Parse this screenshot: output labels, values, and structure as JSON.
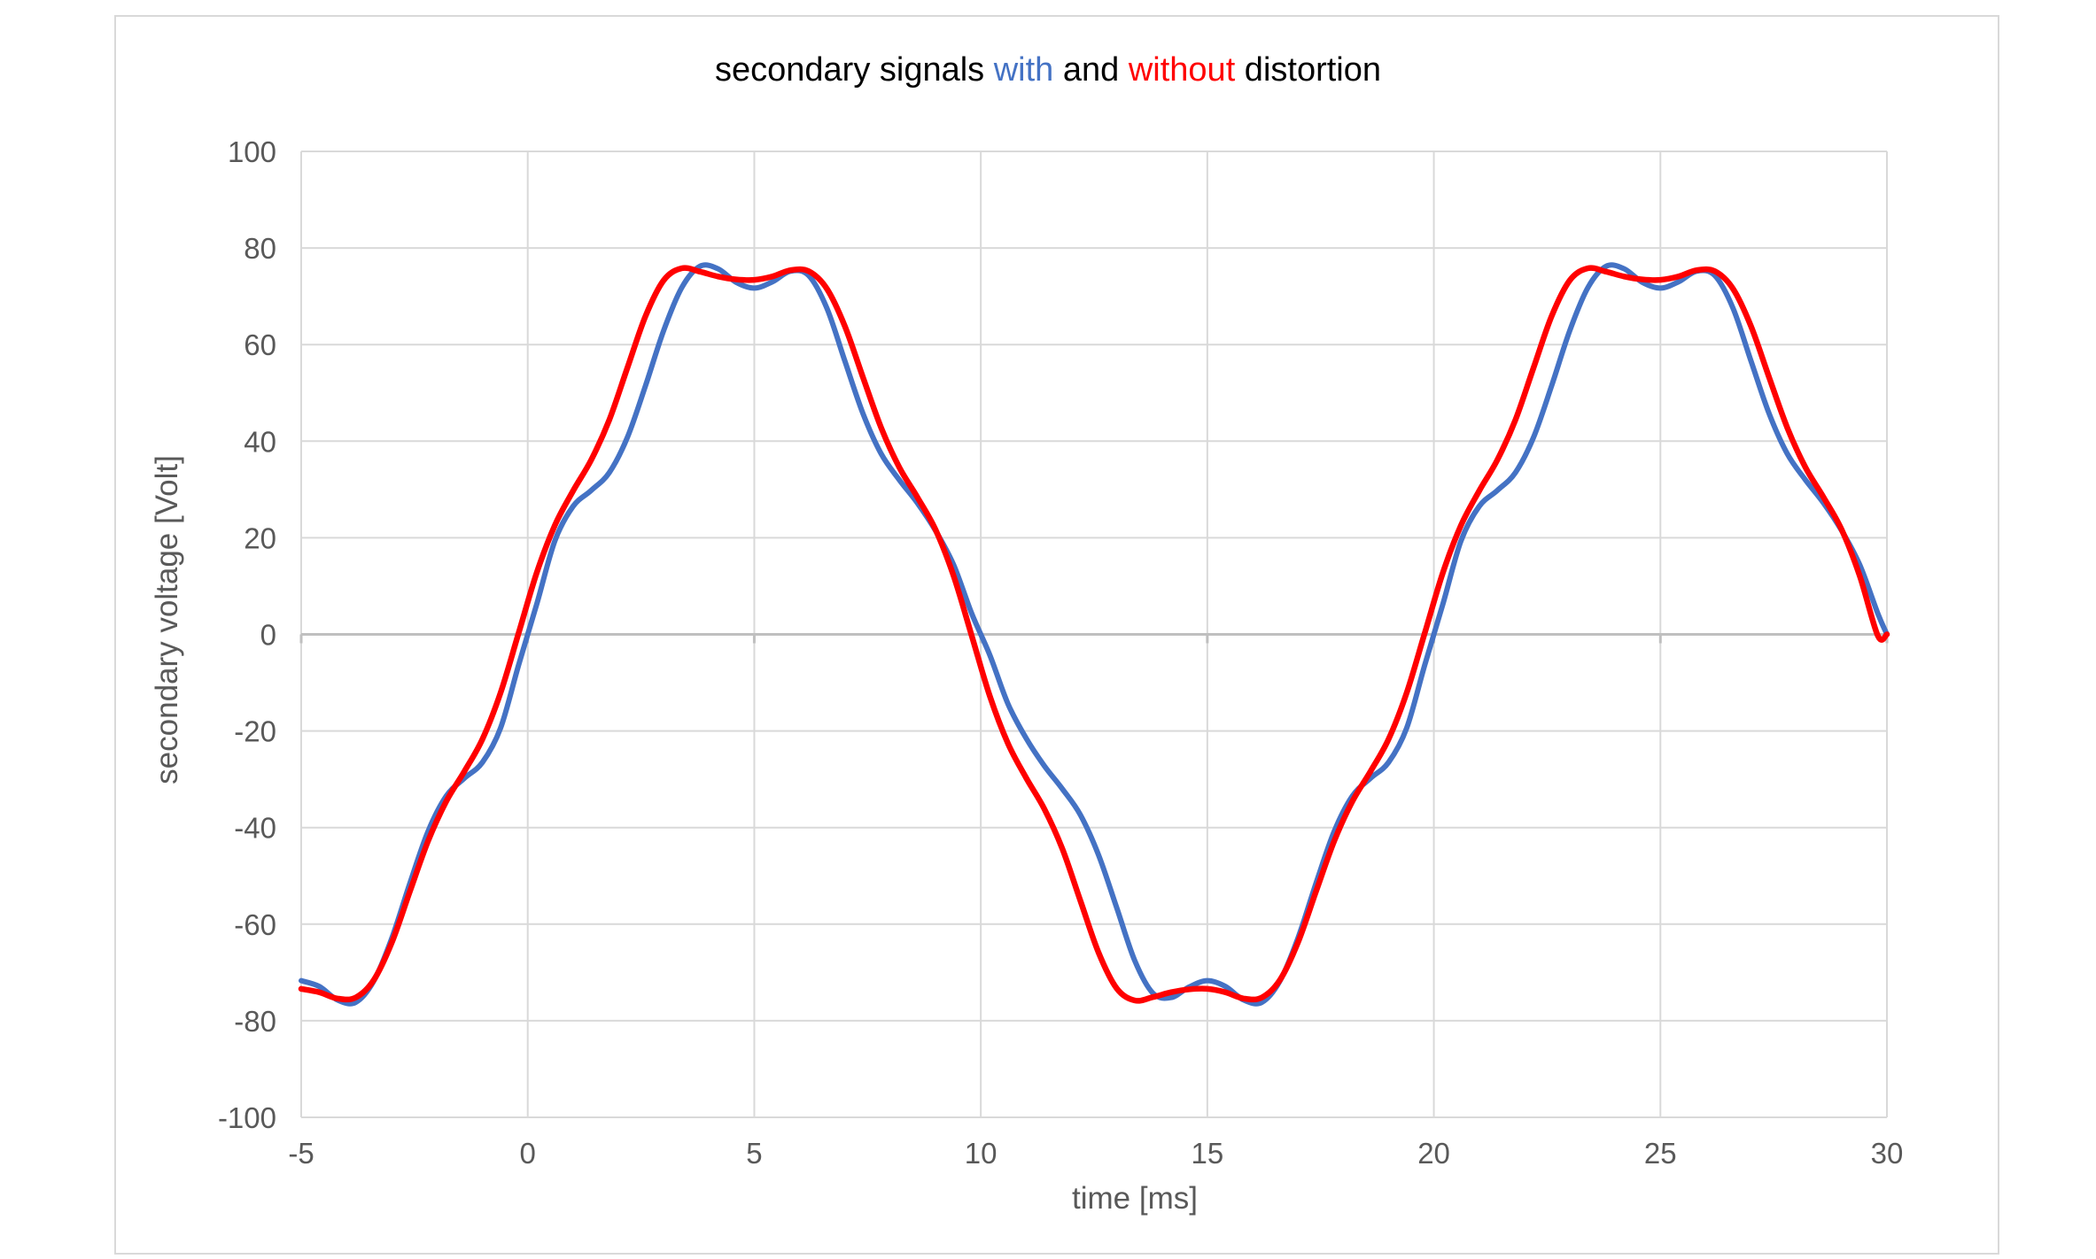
{
  "chart_data": {
    "type": "line",
    "title_parts": [
      {
        "text": "secondary signals ",
        "color": "#000000"
      },
      {
        "text": "with",
        "color": "#4472c4"
      },
      {
        "text": " and ",
        "color": "#000000"
      },
      {
        "text": "without",
        "color": "#ff0000"
      },
      {
        "text": " distortion",
        "color": "#000000"
      }
    ],
    "xlabel": "time [ms]",
    "ylabel": "secondary voltage [Volt]",
    "xlim": [
      -5,
      30
    ],
    "ylim": [
      -100,
      100
    ],
    "x_ticks": [
      -5,
      0,
      5,
      10,
      15,
      20,
      25,
      30
    ],
    "y_ticks": [
      100,
      80,
      60,
      40,
      20,
      0,
      -20,
      -40,
      -60,
      -80,
      -100
    ],
    "grid": true,
    "period_ms": 20,
    "series": [
      {
        "color": "#4472c4",
        "x": [
          -5.0,
          -4.6,
          -4.2,
          -3.8,
          -3.4,
          -3.0,
          -2.6,
          -2.2,
          -1.8,
          -1.4,
          -1.0,
          -0.6,
          -0.2,
          0.2,
          0.6,
          1.0,
          1.4,
          1.8,
          2.2,
          2.6,
          3.0,
          3.4,
          3.8,
          4.2,
          4.6,
          5.0,
          5.4,
          5.8,
          6.2,
          6.6,
          7.0,
          7.4,
          7.8,
          8.2,
          8.6,
          9.0,
          9.4,
          9.8,
          10.2,
          10.6,
          11.0,
          11.4,
          11.8,
          12.2,
          12.6,
          13.0,
          13.4,
          13.8,
          14.2,
          14.6,
          15.0,
          15.4,
          15.8,
          16.2,
          16.6,
          17.0,
          17.4,
          17.8,
          18.2,
          18.6,
          19.0,
          19.4,
          19.8,
          20.2,
          20.6,
          21.0,
          21.4,
          21.8,
          22.2,
          22.6,
          23.0,
          23.4,
          23.8,
          24.2,
          24.6,
          25.0,
          25.4,
          25.8,
          26.2,
          26.6,
          27.0,
          27.4,
          27.8,
          28.2,
          28.6,
          29.0,
          29.4,
          29.8,
          30.0
        ],
        "y": [
          -71.7,
          -72.9,
          -75.7,
          -76.2,
          -71.8,
          -62.9,
          -51.5,
          -40.8,
          -33.5,
          -29.8,
          -26.5,
          -19.4,
          -6.3,
          6.3,
          19.4,
          26.5,
          29.8,
          33.5,
          40.8,
          51.5,
          62.9,
          71.8,
          76.2,
          75.7,
          72.9,
          71.7,
          73.0,
          75.2,
          74.3,
          67.6,
          56.6,
          45.7,
          37.4,
          32.0,
          27.2,
          21.5,
          14.4,
          4.3,
          -4.3,
          -14.4,
          -21.5,
          -27.2,
          -32.0,
          -37.4,
          -45.7,
          -56.6,
          -67.6,
          -74.3,
          -75.2,
          -73.0,
          -71.7,
          -72.9,
          -75.7,
          -76.2,
          -71.8,
          -62.9,
          -51.5,
          -40.8,
          -33.5,
          -29.8,
          -26.5,
          -19.4,
          -6.3,
          6.3,
          19.4,
          26.5,
          29.8,
          33.5,
          40.8,
          51.5,
          62.9,
          71.8,
          76.2,
          75.7,
          72.9,
          71.7,
          73.0,
          75.2,
          74.3,
          67.6,
          56.6,
          45.7,
          37.4,
          32.0,
          27.2,
          21.5,
          14.4,
          4.3,
          0.0
        ]
      },
      {
        "color": "#ff0000",
        "x": [
          -5.0,
          -4.6,
          -4.2,
          -3.8,
          -3.4,
          -3.0,
          -2.6,
          -2.2,
          -1.8,
          -1.4,
          -1.0,
          -0.6,
          -0.2,
          0.2,
          0.6,
          1.0,
          1.4,
          1.8,
          2.2,
          2.6,
          3.0,
          3.4,
          3.8,
          4.2,
          4.6,
          5.0,
          5.4,
          5.8,
          6.2,
          6.6,
          7.0,
          7.4,
          7.8,
          8.2,
          8.6,
          9.0,
          9.4,
          9.8,
          10.2,
          10.6,
          11.0,
          11.4,
          11.8,
          12.2,
          12.6,
          13.0,
          13.4,
          13.8,
          14.2,
          14.6,
          15.0,
          15.4,
          15.8,
          16.2,
          16.6,
          17.0,
          17.4,
          17.8,
          18.2,
          18.6,
          19.0,
          19.4,
          19.8,
          20.2,
          20.6,
          21.0,
          21.4,
          21.8,
          22.2,
          22.6,
          23.0,
          23.4,
          23.8,
          24.2,
          24.6,
          25.0,
          25.4,
          25.8,
          26.2,
          26.6,
          27.0,
          27.4,
          27.8,
          28.2,
          28.6,
          29.0,
          29.4,
          29.8,
          30.0
        ],
        "y": [
          -73.4,
          -74.1,
          -75.4,
          -75.2,
          -71.6,
          -63.8,
          -53.2,
          -42.8,
          -34.6,
          -28.4,
          -21.7,
          -12.1,
          0.3,
          12.8,
          22.6,
          29.7,
          36.1,
          44.4,
          55.2,
          65.9,
          73.3,
          75.8,
          75.1,
          74.1,
          73.5,
          73.4,
          74.1,
          75.4,
          75.2,
          71.6,
          63.8,
          53.2,
          42.8,
          34.6,
          28.4,
          21.7,
          12.1,
          -0.3,
          -12.8,
          -22.6,
          -29.7,
          -36.1,
          -44.4,
          -55.2,
          -65.9,
          -73.3,
          -75.8,
          -75.1,
          -74.1,
          -73.5,
          -73.4,
          -74.1,
          -75.4,
          -75.2,
          -71.6,
          -63.8,
          -53.2,
          -42.8,
          -34.6,
          -28.4,
          -21.7,
          -12.1,
          0.3,
          12.8,
          22.6,
          29.7,
          36.1,
          44.4,
          55.2,
          65.9,
          73.3,
          75.8,
          75.1,
          74.1,
          73.5,
          73.4,
          74.1,
          75.4,
          75.2,
          71.6,
          63.8,
          53.2,
          42.8,
          34.6,
          28.4,
          21.7,
          12.1,
          -0.3,
          0.0
        ]
      }
    ]
  }
}
